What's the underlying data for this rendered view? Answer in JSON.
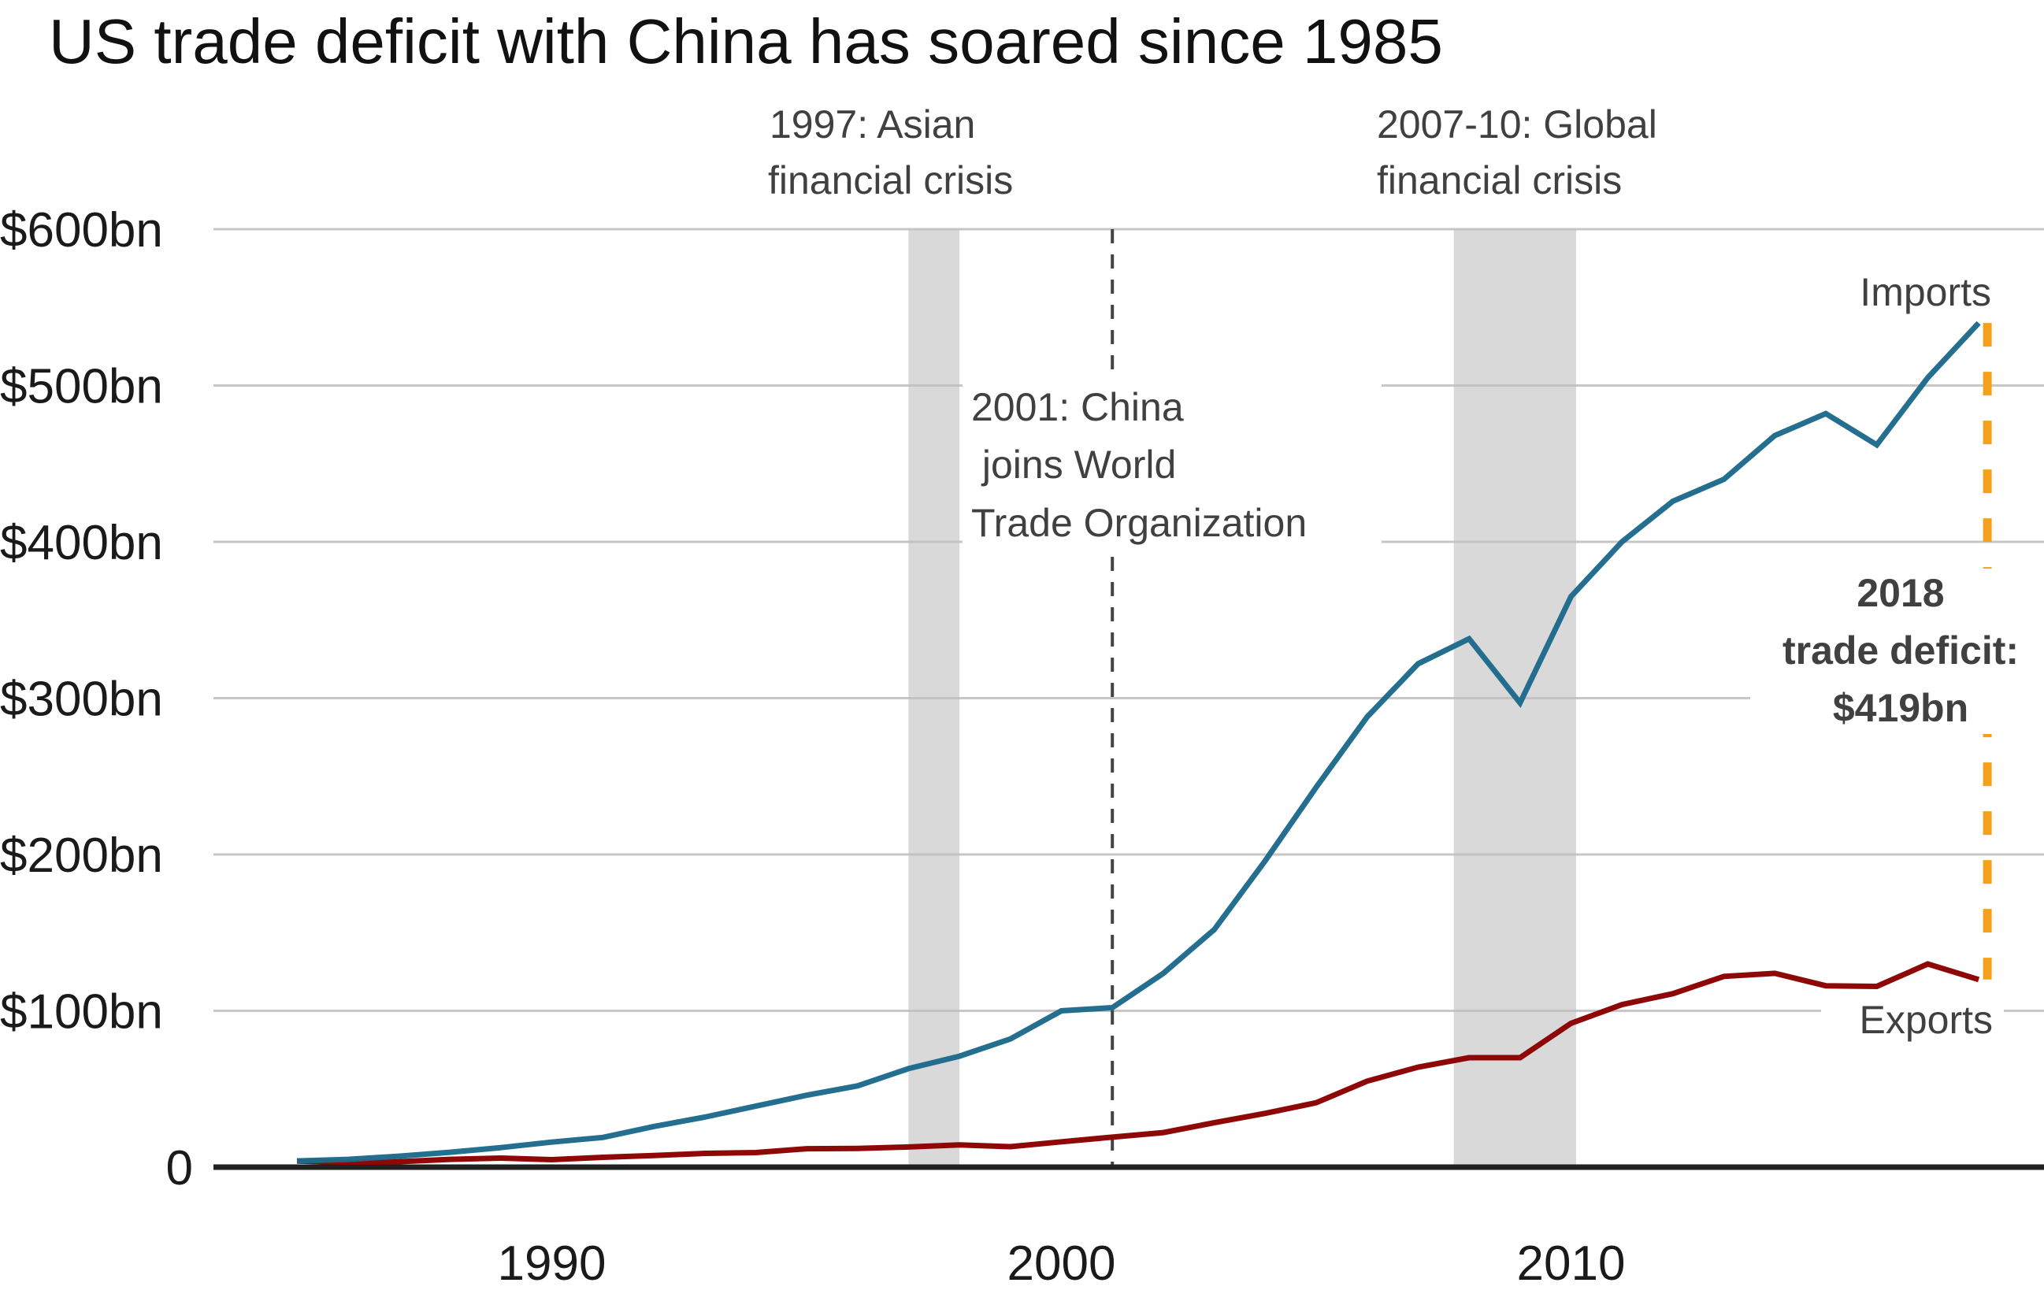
{
  "chart_data": {
    "type": "line",
    "title": "US trade deficit with China has soared since 1985",
    "xlabel": "",
    "ylabel": "",
    "x": [
      1985,
      1986,
      1987,
      1988,
      1989,
      1990,
      1991,
      1992,
      1993,
      1994,
      1995,
      1996,
      1997,
      1998,
      1999,
      2000,
      2001,
      2002,
      2003,
      2004,
      2005,
      2006,
      2007,
      2008,
      2009,
      2010,
      2011,
      2012,
      2013,
      2014,
      2015,
      2016,
      2017,
      2018
    ],
    "xlim": [
      1980.2,
      2019.4
    ],
    "ylim": [
      0,
      600
    ],
    "grid": true,
    "xticks": [
      1990,
      2000,
      2010
    ],
    "xtick_labels": [
      "1990",
      "2000",
      "2010"
    ],
    "yticks": [
      0,
      100,
      200,
      300,
      400,
      500,
      600
    ],
    "ytick_labels": [
      "0",
      "$100bn",
      "$200bn",
      "$300bn",
      "$400bn",
      "$500bn",
      "$600bn"
    ],
    "series": [
      {
        "name": "Imports",
        "color": "#1d6a8c",
        "values": [
          4,
          5,
          7,
          9.5,
          12.5,
          16,
          19,
          26,
          32,
          39,
          46,
          52,
          63,
          71,
          82,
          100,
          102,
          124,
          152,
          196,
          243,
          288,
          322,
          338,
          297,
          365,
          400,
          426,
          440,
          468,
          482,
          462,
          505,
          540
        ]
      },
      {
        "name": "Exports",
        "color": "#8b0000",
        "values": [
          3.9,
          3.1,
          3.5,
          5,
          5.8,
          4.8,
          6.3,
          7.4,
          8.8,
          9.3,
          11.8,
          12,
          12.9,
          14.2,
          13.1,
          16.2,
          19.2,
          22.1,
          28.4,
          34.4,
          41.2,
          55,
          64,
          70,
          70,
          92,
          104,
          111,
          122,
          124,
          116,
          115.6,
          130,
          120
        ]
      }
    ],
    "shaded_periods": [
      {
        "label": "1997: Asian financial crisis",
        "start": 1997.0,
        "end": 1998.0,
        "lines": [
          "1997: Asian",
          "financial crisis"
        ]
      },
      {
        "label": "2007-10: Global financial crisis",
        "start": 2007.7,
        "end": 2010.1,
        "lines": [
          "2007-10: Global",
          "financial crisis"
        ]
      }
    ],
    "vertical_markers": [
      {
        "x": 2001,
        "style": "dashed",
        "lines": [
          "2001: China",
          " joins World",
          "Trade Organization"
        ]
      }
    ],
    "deficit_marker": {
      "x": 2018,
      "from": 120,
      "to": 540,
      "color": "#f5a01a",
      "lines": [
        "2018",
        "trade deficit:",
        "$419bn"
      ]
    },
    "series_labels": {
      "imports": "Imports",
      "exports": "Exports"
    },
    "band_color": "#d9d9d9",
    "grid_color": "#bdbdbd",
    "baseline_color": "#222222"
  }
}
